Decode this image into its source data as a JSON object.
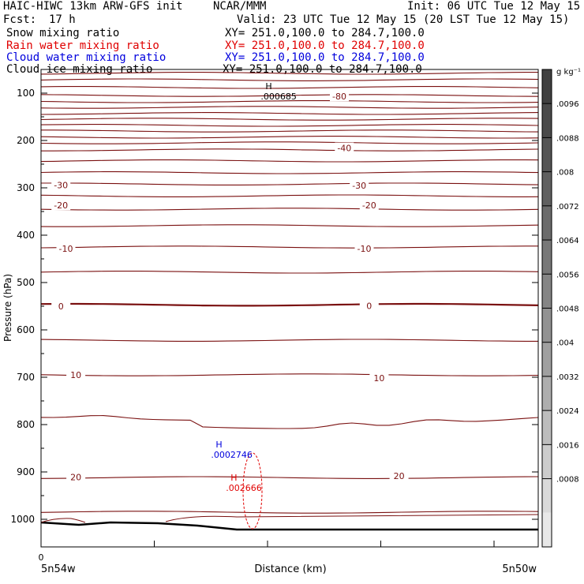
{
  "header": {
    "run_title": "HAIC-HIWC 13km ARW-GFS init",
    "org": "NCAR/MMM",
    "init": "Init: 06 UTC Tue 12 May 15",
    "fcst_label": "Fcst:",
    "fcst_value": "17 h",
    "valid": "Valid: 23 UTC Tue 12 May 15 (20 LST Tue 12 May 15)",
    "fields": [
      {
        "label": "Snow mixing ratio",
        "xy": "XY= 251.0,100.0 to 284.7,100.0",
        "color": "#000000"
      },
      {
        "label": "Rain water mixing ratio",
        "xy": "XY= 251.0,100.0 to 284.7,100.0",
        "color": "#e00000"
      },
      {
        "label": "Cloud water mixing ratio",
        "xy": "XY= 251.0,100.0 to 284.7,100.0",
        "color": "#0000dd"
      },
      {
        "label": "Cloud ice mixing ratio",
        "xy": "XY= 251.0,100.0 to 284.7,100.0",
        "color": "#000000"
      }
    ]
  },
  "colorbar": {
    "unit": "g kg⁻¹",
    "ticks": [
      ".0096",
      ".0088",
      ".008",
      ".0072",
      ".0064",
      ".0056",
      ".0048",
      ".004",
      ".0032",
      ".0024",
      ".0016",
      ".0008"
    ],
    "shades": [
      "#404040",
      "#4a4a4a",
      "#555555",
      "#606060",
      "#6c6c6c",
      "#787878",
      "#858585",
      "#929292",
      "#a0a0a0",
      "#aeaeae",
      "#bdbdbd",
      "#cccccc",
      "#dadada",
      "#e8e8e8"
    ]
  },
  "chart_data": {
    "type": "contour",
    "ylabel": "Pressure (hPa)",
    "xlabel": "Distance (km)",
    "x_start_label": "5n54w",
    "x_end_label": "5n50w",
    "x_zero_label": "0",
    "y_ticks": [
      100,
      200,
      300,
      400,
      500,
      600,
      700,
      800,
      900,
      1000
    ],
    "isotherm_color": "#7a1010",
    "isotherm_levels_p": [
      30,
      45,
      58,
      72,
      88,
      105,
      118,
      130,
      143,
      155,
      168,
      180,
      193,
      205,
      220,
      243,
      268,
      292,
      317,
      345,
      380,
      425,
      478,
      547,
      622,
      695,
      785,
      912,
      985
    ],
    "zero_line_p": 547,
    "contour_labels": [
      {
        "text": "-80",
        "x": 0.6,
        "p": 107,
        "color": "#7a1010"
      },
      {
        "text": "-40",
        "x": 0.61,
        "p": 216,
        "color": "#7a1010"
      },
      {
        "text": "-30",
        "x": 0.04,
        "p": 294,
        "color": "#7a1010"
      },
      {
        "text": "-30",
        "x": 0.64,
        "p": 295,
        "color": "#7a1010"
      },
      {
        "text": "-20",
        "x": 0.04,
        "p": 337,
        "color": "#7a1010"
      },
      {
        "text": "-20",
        "x": 0.66,
        "p": 337,
        "color": "#7a1010"
      },
      {
        "text": "-10",
        "x": 0.05,
        "p": 428,
        "color": "#7a1010"
      },
      {
        "text": "-10",
        "x": 0.65,
        "p": 428,
        "color": "#7a1010"
      },
      {
        "text": "0",
        "x": 0.04,
        "p": 550,
        "color": "#7a1010"
      },
      {
        "text": "0",
        "x": 0.66,
        "p": 549,
        "color": "#7a1010"
      },
      {
        "text": "10",
        "x": 0.07,
        "p": 695,
        "color": "#7a1010"
      },
      {
        "text": "10",
        "x": 0.68,
        "p": 702,
        "color": "#7a1010"
      },
      {
        "text": "20",
        "x": 0.07,
        "p": 911,
        "color": "#7a1010"
      },
      {
        "text": "20",
        "x": 0.72,
        "p": 908,
        "color": "#7a1010"
      }
    ],
    "maxima": [
      {
        "h": "H",
        "value": ".000685",
        "x": 0.48,
        "p": 108,
        "color": "#000000"
      },
      {
        "h": "H",
        "value": ".0002746",
        "x": 0.38,
        "p": 865,
        "color": "#0000dd"
      },
      {
        "h": "H",
        "value": ".002666",
        "x": 0.41,
        "p": 935,
        "color": "#e00000"
      }
    ]
  }
}
